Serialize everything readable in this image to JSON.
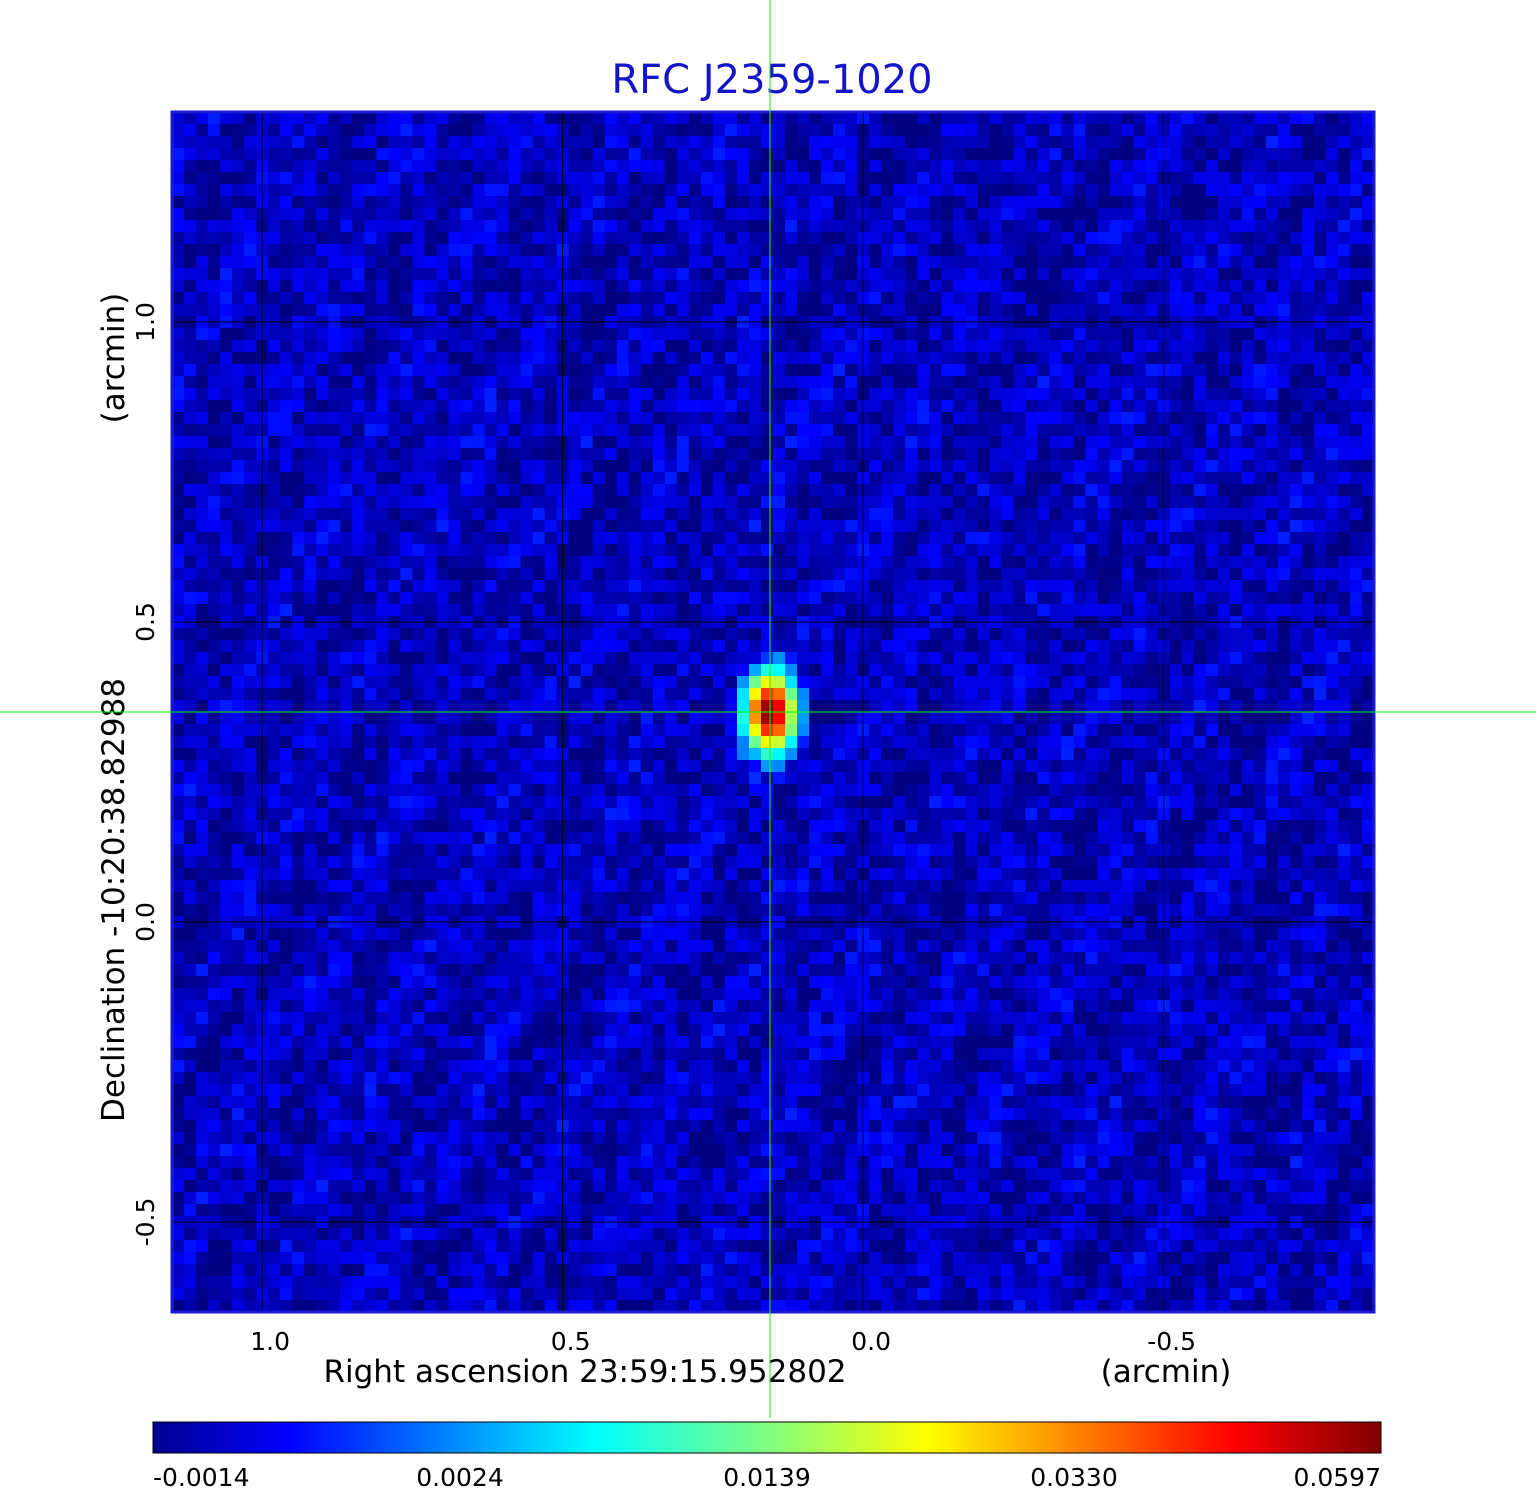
{
  "chart_data": {
    "type": "heatmap",
    "title": "RFC J2359-1020",
    "x_axis": {
      "label_main": "Right ascension  23:59:15.952802",
      "label_unit": "(arcmin)",
      "ticks": [
        1.0,
        0.5,
        0.0,
        -0.5
      ],
      "tick_labels": [
        "1.0",
        "0.5",
        "0.0",
        "-0.5"
      ],
      "range": [
        1.15,
        -0.85
      ],
      "reversed": true
    },
    "y_axis": {
      "label_main": "Declination  -10:20:38.82988",
      "label_unit": "(arcmin)",
      "ticks": [
        1.0,
        0.5,
        0.0,
        -0.5
      ],
      "tick_labels": [
        "1.0",
        "0.5",
        "0.0",
        "-0.5"
      ],
      "range": [
        -0.65,
        1.35
      ]
    },
    "grid": true,
    "colormap": "jet",
    "colorbar": {
      "ticks": [
        -0.0014,
        0.0024,
        0.0139,
        0.033,
        0.0597
      ],
      "tick_labels": [
        "-0.0014",
        "0.0024",
        "0.0139",
        "0.0330",
        "0.0597"
      ],
      "placement": "bottom"
    },
    "source": {
      "ra_offset": 0.155,
      "dec_offset": 0.35,
      "peak": 0.0597
    },
    "crosshair": {
      "x": 0.155,
      "y": 0.35,
      "color": "#00ff00"
    },
    "background_level": -0.0005
  },
  "colors": {
    "title": "#1414c8",
    "frame": "#1a1ad2",
    "grid": "#000000",
    "crosshair": "#00ff00",
    "background_pixel": "#0f5aff"
  }
}
